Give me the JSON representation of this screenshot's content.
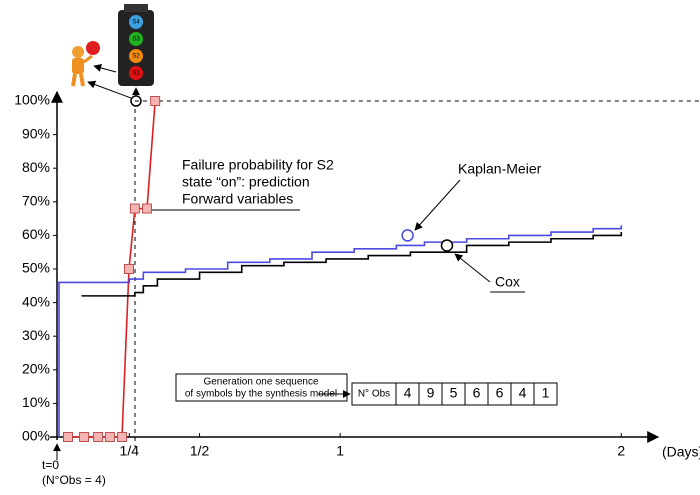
{
  "chart_data": {
    "type": "line",
    "x_label": "(Days)",
    "xlim": [
      0,
      2.12
    ],
    "ylim": [
      0,
      100
    ],
    "xticks": [
      {
        "value": 0.25,
        "label": "1/4"
      },
      {
        "value": 0.5,
        "label": "1/2"
      },
      1,
      2
    ],
    "yticks": [
      {
        "value": 0,
        "label": "00%"
      },
      {
        "value": 10,
        "label": "10%"
      },
      {
        "value": 20,
        "label": "20%"
      },
      {
        "value": 30,
        "label": "30%"
      },
      {
        "value": 40,
        "label": "40%"
      },
      {
        "value": 50,
        "label": "50%"
      },
      {
        "value": 60,
        "label": "60%"
      },
      {
        "value": 70,
        "label": "70%"
      },
      {
        "value": 80,
        "label": "80%"
      },
      {
        "value": 90,
        "label": "90%"
      },
      {
        "value": 100,
        "label": "100%"
      }
    ],
    "series": [
      {
        "name": "Forward variables",
        "color": "#e02020",
        "marker_color": "#f4b4b4",
        "step": false,
        "x": [
          0.032,
          0.089,
          0.139,
          0.181,
          0.224,
          0.249,
          0.27,
          0.313,
          0.342
        ],
        "values": [
          0,
          0,
          0,
          0,
          0,
          50,
          68,
          68,
          100
        ]
      },
      {
        "name": "Kaplan-Meier",
        "color": "#4a4ae0",
        "step": true,
        "x": [
          0,
          0,
          0.25,
          0.3,
          0.45,
          0.6,
          0.75,
          0.9,
          1.05,
          1.2,
          1.3,
          1.45,
          1.6,
          1.75,
          1.9,
          2.0
        ],
        "values": [
          0,
          46,
          47,
          49,
          50,
          52,
          53,
          55,
          56,
          57,
          58,
          59,
          60,
          61,
          62,
          63
        ],
        "marker_x": 1.24,
        "marker_value": 60
      },
      {
        "name": "Cox",
        "color": "#000000",
        "step": true,
        "x": [
          0.08,
          0.27,
          0.3,
          0.35,
          0.5,
          0.65,
          0.8,
          0.95,
          1.1,
          1.25,
          1.45,
          1.6,
          1.75,
          1.9,
          2.0
        ],
        "values": [
          42,
          43,
          45,
          47,
          49,
          51,
          52,
          53,
          54,
          55,
          57,
          58,
          59,
          60,
          61
        ],
        "marker_x": 1.38,
        "marker_value": 57
      }
    ],
    "annotation_lines": [
      "Failure probability for S2",
      "state “on”: prediction"
    ],
    "generation_lines": [
      "Generation one sequence",
      "of symbols by the synthesis model"
    ],
    "obs_header": "N° Obs",
    "obs_sequence": [
      4,
      9,
      5,
      6,
      6,
      4,
      1
    ],
    "origin_lines": [
      "t=0",
      "(N°Obs = 4)"
    ],
    "light_labels": [
      "S4",
      "S3",
      "S2",
      "S1"
    ]
  }
}
